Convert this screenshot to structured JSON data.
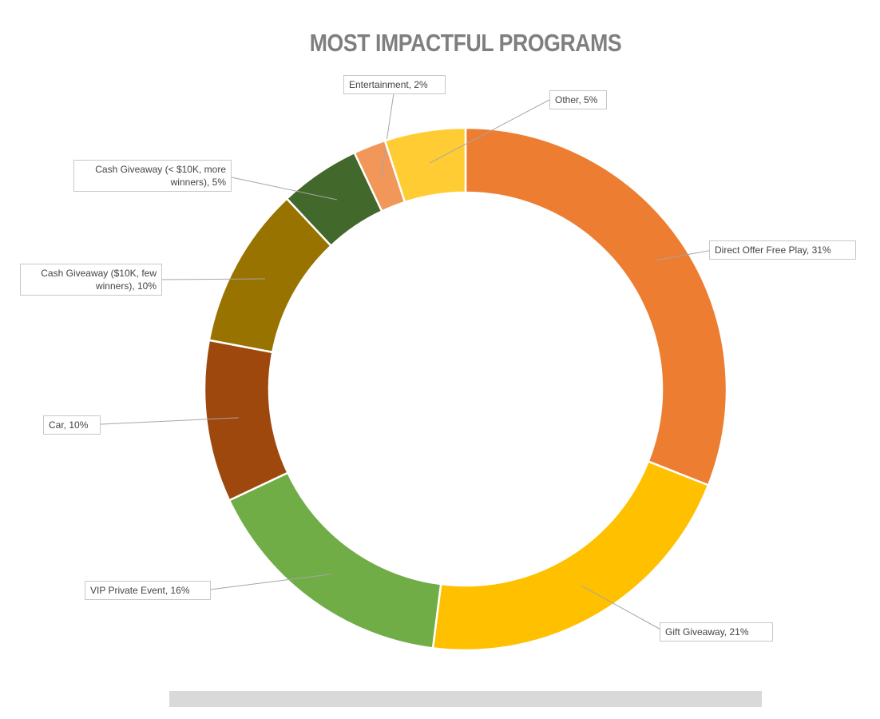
{
  "chart_data": {
    "type": "donut",
    "title": "MOST IMPACTFUL PROGRAMS",
    "series": [
      {
        "label": "Direct Offer Free Play, 31%",
        "value": 31,
        "color": "#ED7D31"
      },
      {
        "label": "Gift Giveaway, 21%",
        "value": 21,
        "color": "#FFC000"
      },
      {
        "label": "VIP Private Event, 16%",
        "value": 16,
        "color": "#70AD47"
      },
      {
        "label": "Car, 10%",
        "value": 10,
        "color": "#9E480E"
      },
      {
        "label": "Cash Giveaway ($10K, few winners), 10%",
        "value": 10,
        "color": "#997300"
      },
      {
        "label": "Cash Giveaway (< $10K, more winners), 5%",
        "value": 5,
        "color": "#43682B"
      },
      {
        "label": "Entertainment, 2%",
        "value": 2,
        "color": "#F1975A"
      },
      {
        "label": "Other, 5%",
        "value": 5,
        "color": "#FFCD33"
      }
    ],
    "legend": "none (data labels with leader lines)"
  }
}
